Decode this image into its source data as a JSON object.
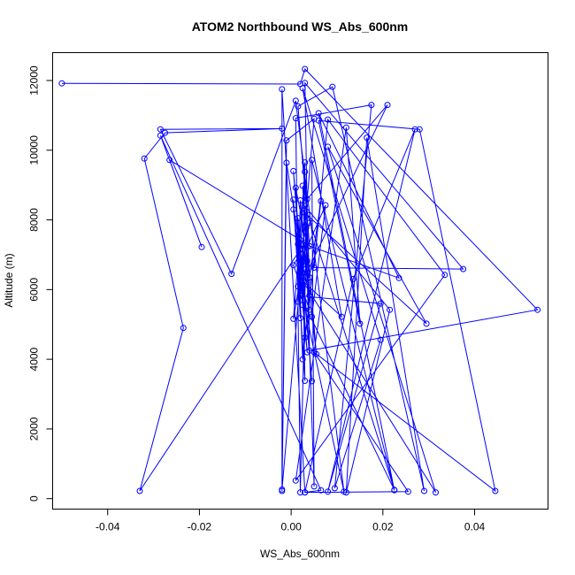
{
  "chart_data": {
    "type": "scatter",
    "title": "ATOM2 Northbound WS_Abs_600nm",
    "xlabel": "WS_Abs_600nm",
    "ylabel": "Altitude (m)",
    "xlim": [
      -0.052,
      0.056
    ],
    "ylim": [
      -300,
      12800
    ],
    "xticks": [
      -0.04,
      -0.02,
      0.0,
      0.02,
      0.04
    ],
    "xtick_labels": [
      "-0.04",
      "-0.02",
      "0.00",
      "0.02",
      "0.04"
    ],
    "yticks": [
      0,
      2000,
      4000,
      6000,
      8000,
      10000,
      12000
    ],
    "ytick_labels": [
      "0",
      "2000",
      "4000",
      "6000",
      "8000",
      "10000",
      "12000"
    ],
    "grid": false,
    "colors": {
      "series": "#0000ff",
      "axes": "#000000"
    },
    "series": [
      {
        "style": "line+points",
        "points": [
          [
            -0.05,
            11920
          ],
          [
            0.002,
            11900
          ],
          [
            0.003,
            12330
          ],
          [
            0.0537,
            5420
          ],
          [
            0.004,
            4250
          ],
          [
            0.003,
            11930
          ],
          [
            0.0375,
            6590
          ],
          [
            0.005,
            6630
          ],
          [
            0.008,
            10880
          ],
          [
            0.0335,
            6420
          ],
          [
            0.001,
            520
          ],
          [
            0.012,
            10650
          ],
          [
            0.015,
            5020
          ],
          [
            0.006,
            10850
          ],
          [
            0.028,
            10600
          ],
          [
            0.0445,
            220
          ],
          [
            0.005,
            4200
          ],
          [
            0.0255,
            200
          ],
          [
            0.003,
            180
          ],
          [
            0.0135,
            6300
          ],
          [
            0.027,
            10600
          ],
          [
            0.008,
            200
          ],
          [
            0.0195,
            5600
          ],
          [
            0.002,
            5820
          ],
          [
            0.0225,
            250
          ],
          [
            0.003,
            8400
          ],
          [
            0.0215,
            5420
          ],
          [
            0.012,
            180
          ],
          [
            0.0165,
            10360
          ],
          [
            0.029,
            220
          ],
          [
            0.009,
            11820
          ],
          [
            0.0015,
            11260
          ],
          [
            0.004,
            7250
          ],
          [
            0.0235,
            6330
          ],
          [
            0.006,
            11060
          ],
          [
            0.0225,
            240
          ],
          [
            0.0045,
            9720
          ],
          [
            0.005,
            350
          ],
          [
            0.003,
            8200
          ],
          [
            0.0295,
            5020
          ],
          [
            0.008,
            10100
          ],
          [
            0.0315,
            180
          ],
          [
            0.0025,
            6250
          ],
          [
            0.011,
            5220
          ],
          [
            0.0025,
            11780
          ],
          [
            0.0195,
            4560
          ],
          [
            0.0095,
            300
          ],
          [
            0.0175,
            11300
          ],
          [
            0.001,
            10920
          ],
          [
            0.002,
            180
          ],
          [
            0.0035,
            8600
          ],
          [
            0.021,
            11300
          ],
          [
            0.002,
            6100
          ],
          [
            0.0115,
            200
          ],
          [
            0.001,
            11420
          ],
          [
            -0.013,
            6450
          ],
          [
            -0.0285,
            10600
          ],
          [
            -0.002,
            10620
          ],
          [
            -0.0275,
            10500
          ],
          [
            -0.032,
            9760
          ],
          [
            -0.0235,
            4900
          ],
          [
            -0.033,
            220
          ],
          [
            0.003,
            7350
          ],
          [
            -0.0265,
            9720
          ],
          [
            -0.0195,
            7220
          ],
          [
            -0.0285,
            10420
          ],
          [
            0.0065,
            240
          ],
          [
            0.003,
            180
          ],
          [
            -0.002,
            11750
          ],
          [
            -0.002,
            260
          ],
          [
            0.005,
            10900
          ],
          [
            -0.001,
            10280
          ],
          [
            -0.002,
            220
          ],
          [
            -0.001,
            9640
          ],
          [
            0.0025,
            6700
          ],
          [
            0.0045,
            3370
          ],
          [
            0.0005,
            9400
          ],
          [
            0.0035,
            4200
          ],
          [
            0.0005,
            8300
          ],
          [
            0.002,
            6600
          ],
          [
            0.002,
            5180
          ],
          [
            0.0005,
            8580
          ],
          [
            0.003,
            3380
          ],
          [
            0.0025,
            7150
          ],
          [
            0.0005,
            6700
          ],
          [
            0.004,
            5420
          ],
          [
            0.002,
            8560
          ],
          [
            0.0015,
            6090
          ],
          [
            0.004,
            7920
          ],
          [
            0.0005,
            5160
          ],
          [
            0.003,
            9380
          ],
          [
            0.004,
            6350
          ],
          [
            0.0065,
            8540
          ],
          [
            0.0025,
            4000
          ],
          [
            0.001,
            8920
          ],
          [
            0.0035,
            7220
          ],
          [
            0.0075,
            8420
          ],
          [
            0.0045,
            5220
          ],
          [
            0.0035,
            6820
          ],
          [
            0.0015,
            5650
          ],
          [
            0.003,
            9650
          ],
          [
            0.0025,
            6240
          ],
          [
            0.0035,
            8150
          ],
          [
            0.0015,
            7300
          ],
          [
            0.004,
            5830
          ],
          [
            0.0025,
            8980
          ],
          [
            0.0055,
            4150
          ],
          [
            0.0035,
            6480
          ],
          [
            0.002,
            7420
          ],
          [
            0.0025,
            5560
          ],
          [
            0.0015,
            8050
          ],
          [
            0.003,
            4620
          ]
        ]
      }
    ]
  }
}
